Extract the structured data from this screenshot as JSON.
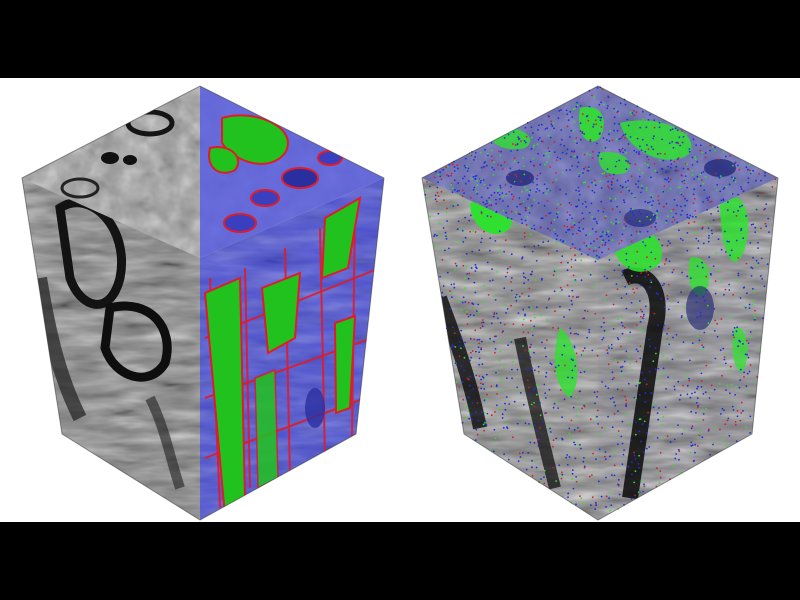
{
  "figure": {
    "background": "#ffffff",
    "letterbox_color": "#000000",
    "panels": [
      {
        "id": "left-volume",
        "description_colors": {
          "raw_em": "#8a8a8a",
          "membrane": "#e01b2a",
          "cytoplasm": "#4a4fd0",
          "mitochondria": "#22c21e"
        }
      },
      {
        "id": "right-volume",
        "description_colors": {
          "raw_em": "#8a8a8a",
          "blue_points": "#1f2fd8",
          "green_points": "#30e030",
          "red_points": "#d02030"
        }
      }
    ]
  }
}
